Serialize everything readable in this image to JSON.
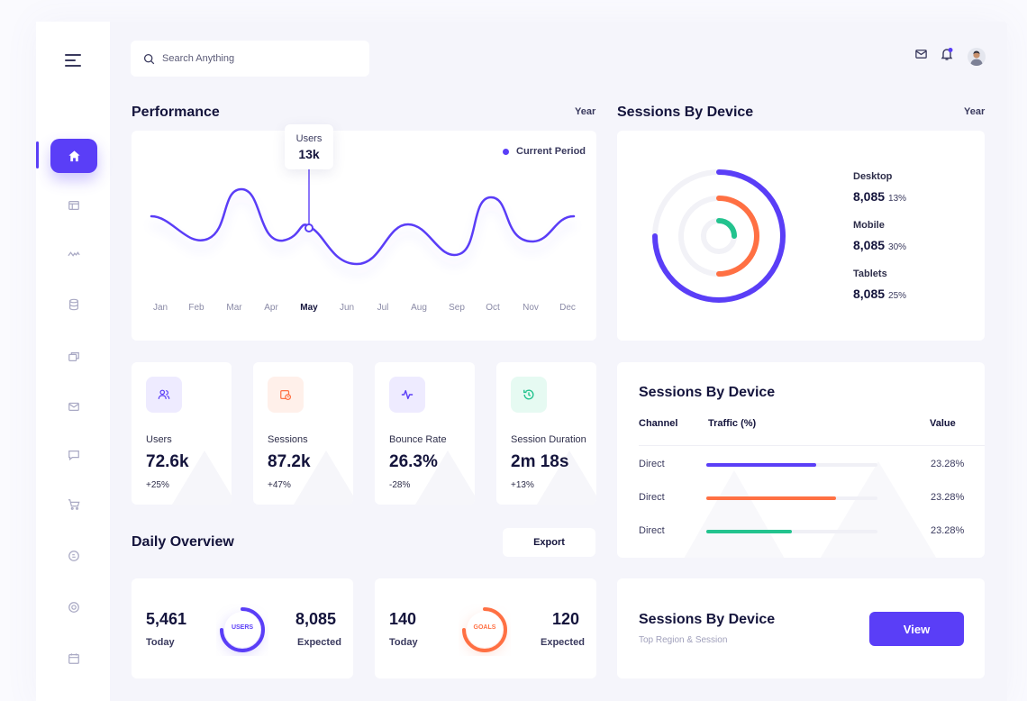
{
  "search": {
    "placeholder": "Search Anything"
  },
  "performance": {
    "title": "Performance",
    "period": "Year",
    "legend": "Current Period",
    "tooltip": {
      "label": "Users",
      "value": "13k"
    },
    "months": [
      "Jan",
      "Feb",
      "Mar",
      "Apr",
      "May",
      "Jun",
      "Jul",
      "Aug",
      "Sep",
      "Oct",
      "Nov",
      "Dec"
    ],
    "active_month": "May"
  },
  "sessions_device": {
    "title": "Sessions By Device",
    "period": "Year",
    "items": [
      {
        "label": "Desktop",
        "value": "8,085",
        "pct": "13%"
      },
      {
        "label": "Mobile",
        "value": "8,085",
        "pct": "30%"
      },
      {
        "label": "Tablets",
        "value": "8,085",
        "pct": "25%"
      }
    ],
    "colors": {
      "desktop": "#5a3ef7",
      "mobile": "#ff7043",
      "tablets": "#23c38e"
    }
  },
  "stats": [
    {
      "label": "Users",
      "value": "72.6k",
      "change": "+25%"
    },
    {
      "label": "Sessions",
      "value": "87.2k",
      "change": "+47%"
    },
    {
      "label": "Bounce Rate",
      "value": "26.3%",
      "change": "-28%"
    },
    {
      "label": "Session Duration",
      "value": "2m 18s",
      "change": "+13%"
    }
  ],
  "table": {
    "title": "Sessions By Device",
    "headers": [
      "Channel",
      "Traffic (%)",
      "Value"
    ],
    "rows": [
      {
        "channel": "Direct",
        "traffic": 0.64,
        "value": "23.28%",
        "color": "#5a3ef7"
      },
      {
        "channel": "Direct",
        "traffic": 0.76,
        "value": "23.28%",
        "color": "#ff7043"
      },
      {
        "channel": "Direct",
        "traffic": 0.5,
        "value": "23.28%",
        "color": "#23c38e"
      }
    ]
  },
  "daily": {
    "title": "Daily Overview",
    "export_label": "Export",
    "cards": [
      {
        "today": "5,461",
        "today_label": "Today",
        "expected": "8,085",
        "expected_label": "Expected",
        "ring_label": "USERS"
      },
      {
        "today": "140",
        "today_label": "Today",
        "expected": "120",
        "expected_label": "Expected",
        "ring_label": "GOALS"
      }
    ]
  },
  "region": {
    "title": "Sessions By Device",
    "subtitle": "Top Region & Session",
    "button": "View"
  }
}
